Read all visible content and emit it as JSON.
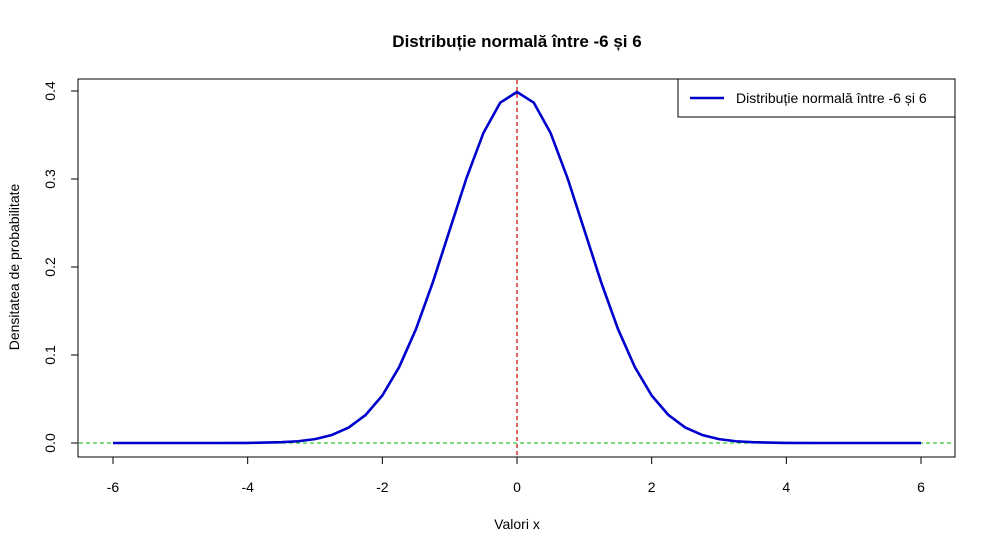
{
  "chart_data": {
    "type": "line",
    "title": "Distribuție normală între -6 și 6",
    "xlabel": "Valori x",
    "ylabel": "Densitatea de probabilitate",
    "xlim": [
      -6,
      6
    ],
    "ylim": [
      0,
      0.4
    ],
    "xticks": [
      -6,
      -4,
      -2,
      0,
      2,
      4,
      6
    ],
    "xtick_labels": [
      "-6",
      "-4",
      "-2",
      "0",
      "2",
      "4",
      "6"
    ],
    "yticks": [
      0.0,
      0.1,
      0.2,
      0.3,
      0.4
    ],
    "ytick_labels": [
      "0.0",
      "0.1",
      "0.2",
      "0.3",
      "0.4"
    ],
    "series": [
      {
        "name": "Distribuție normală între -6 și 6",
        "color": "#0000CD",
        "x": [
          -6,
          -5.5,
          -5,
          -4.5,
          -4,
          -3.5,
          -3.25,
          -3,
          -2.75,
          -2.5,
          -2.25,
          -2,
          -1.75,
          -1.5,
          -1.25,
          -1,
          -0.75,
          -0.5,
          -0.25,
          0,
          0.25,
          0.5,
          0.75,
          1,
          1.25,
          1.5,
          1.75,
          2,
          2.25,
          2.5,
          2.75,
          3,
          3.25,
          3.5,
          4,
          4.5,
          5,
          5.5,
          6
        ],
        "y": [
          0.0,
          0.0,
          0.0,
          0.0,
          0.0001,
          0.0009,
          0.002,
          0.0044,
          0.0091,
          0.0175,
          0.0317,
          0.054,
          0.0863,
          0.1295,
          0.1826,
          0.242,
          0.3011,
          0.3521,
          0.3867,
          0.3989,
          0.3867,
          0.3521,
          0.3011,
          0.242,
          0.1826,
          0.1295,
          0.0863,
          0.054,
          0.0317,
          0.0175,
          0.0091,
          0.0044,
          0.002,
          0.0009,
          0.0001,
          0.0,
          0.0,
          0.0,
          0.0
        ]
      }
    ],
    "reference_lines": {
      "vertical": {
        "x": 0,
        "color": "#CC0000",
        "style": "dashed"
      },
      "horizontal": {
        "y": 0,
        "color": "#33CC33",
        "style": "dashed"
      }
    },
    "legend": {
      "placement": "top-right"
    },
    "grid": false
  }
}
